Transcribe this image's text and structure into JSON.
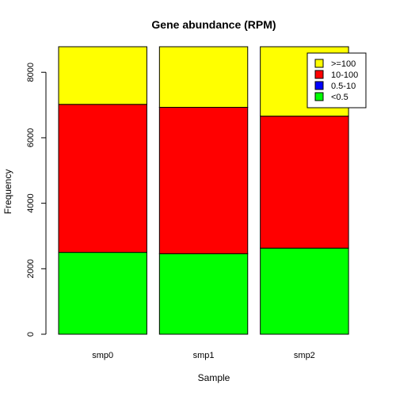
{
  "chart_data": {
    "type": "bar",
    "stacked": true,
    "title": "Gene abundance (RPM)",
    "xlabel": "Sample",
    "ylabel": "Frequency",
    "categories": [
      "smp0",
      "smp1",
      "smp2"
    ],
    "series": [
      {
        "name": "<0.5",
        "color": "#00FF00",
        "values": [
          2500,
          2460,
          2630
        ]
      },
      {
        "name": "0.5-10",
        "color": "#0000FF",
        "values": [
          0,
          0,
          0
        ]
      },
      {
        "name": "10-100",
        "color": "#FF0000",
        "values": [
          4520,
          4470,
          4030
        ]
      },
      {
        "name": ">=100",
        "color": "#FFFF00",
        "values": [
          1760,
          1850,
          2120
        ]
      }
    ],
    "legend_order": [
      ">=100",
      "10-100",
      "0.5-10",
      "<0.5"
    ],
    "yticks": [
      0,
      2000,
      4000,
      6000,
      8000
    ],
    "ylim": [
      0,
      8780
    ],
    "legend_position": "top-right",
    "grid": false
  }
}
